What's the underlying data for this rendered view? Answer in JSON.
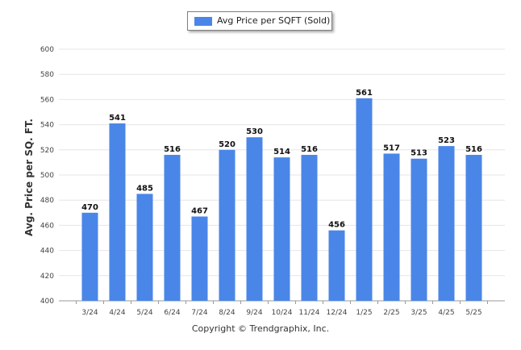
{
  "chart_data": {
    "type": "bar",
    "legend": [
      "Avg Price per SQFT (Sold)"
    ],
    "legend_placement": "top-center",
    "ylabel": "Avg. Price per SQ. FT.",
    "xlabel": "",
    "ylim": [
      400,
      600
    ],
    "yticks": [
      "400",
      "420",
      "440",
      "460",
      "480",
      "500",
      "520",
      "540",
      "560",
      "580",
      "600"
    ],
    "grid": true,
    "categories": [
      "3/24",
      "4/24",
      "5/24",
      "6/24",
      "7/24",
      "8/24",
      "9/24",
      "10/24",
      "11/24",
      "12/24",
      "1/25",
      "2/25",
      "3/25",
      "4/25",
      "5/25"
    ],
    "series": [
      {
        "name": "Avg Price per SQFT (Sold)",
        "values": [
          470,
          541,
          485,
          516,
          467,
          520,
          530,
          514,
          516,
          456,
          561,
          517,
          513,
          523,
          516
        ]
      }
    ],
    "data_labels": [
      "470",
      "541",
      "485",
      "516",
      "467",
      "520",
      "530",
      "514",
      "516",
      "456",
      "561",
      "517",
      "513",
      "523",
      "516"
    ],
    "bar_color": "#4a86e8"
  },
  "footer": "Copyright © Trendgraphix, Inc."
}
